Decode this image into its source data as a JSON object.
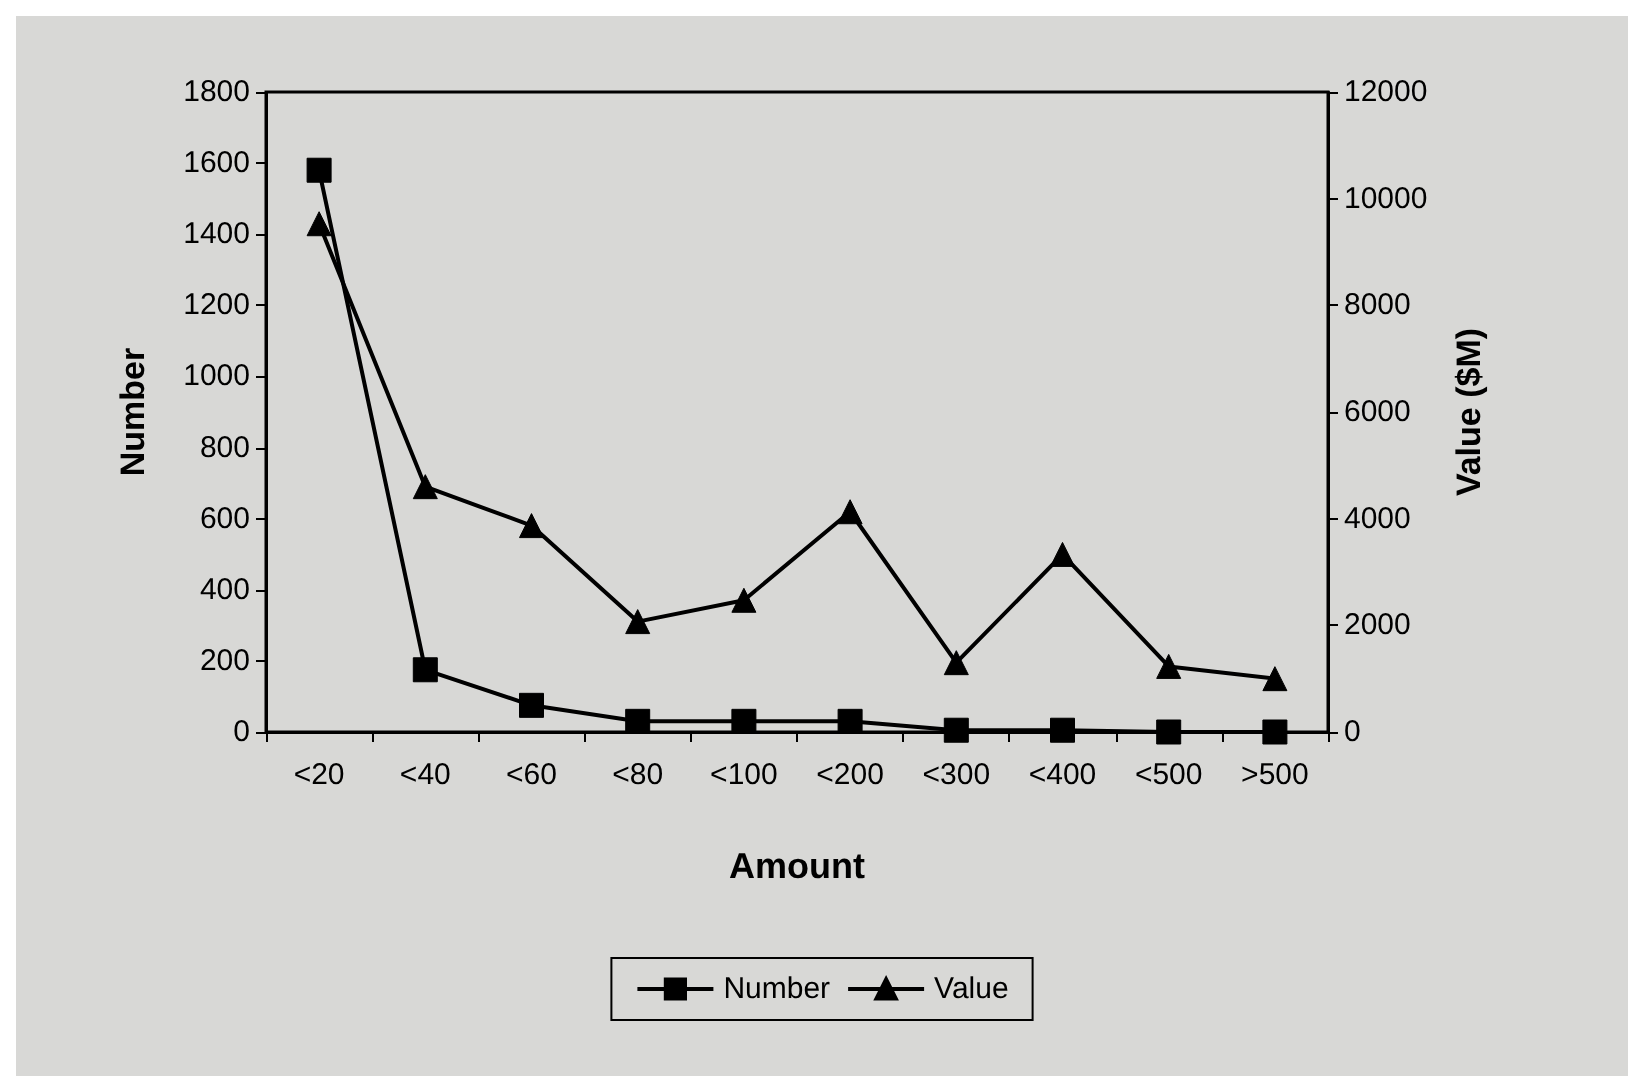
{
  "chart_data": {
    "type": "line",
    "xlabel": "Amount",
    "ylabel": "Number",
    "y2label": "Value ($M)",
    "categories": [
      "<20",
      "<40",
      "<60",
      "<80",
      "<100",
      "<200",
      "<300",
      "<400",
      "<500",
      ">500"
    ],
    "series": [
      {
        "name": "Number",
        "color": "#000000",
        "marker": "square",
        "values": [
          1580,
          175,
          75,
          30,
          30,
          30,
          5,
          5,
          0,
          0
        ]
      },
      {
        "name": "Value",
        "color": "#000000",
        "marker": "triangle",
        "axis": "y2",
        "values": [
          9530,
          4600,
          3870,
          2070,
          2470,
          4130,
          1300,
          3330,
          1230,
          1000
        ]
      }
    ],
    "ylim": [
      0,
      1800
    ],
    "yticks": [
      0,
      200,
      400,
      600,
      800,
      1000,
      1200,
      1400,
      1600,
      1800
    ],
    "y2lim": [
      0,
      12000
    ],
    "y2ticks": [
      0,
      2000,
      4000,
      6000,
      8000,
      10000,
      12000
    ],
    "grid": false,
    "legend": "bottom",
    "line_style": "solid"
  }
}
